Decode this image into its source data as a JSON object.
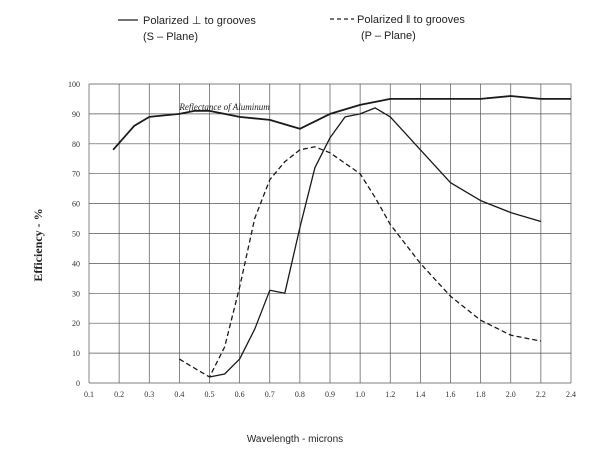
{
  "chart_data": {
    "type": "line",
    "title": "",
    "xlabel": "Wavelength - microns",
    "ylabel": "Efficiency - %",
    "ylim": [
      0,
      100
    ],
    "yticks": [
      0,
      10,
      20,
      30,
      40,
      50,
      60,
      70,
      80,
      90,
      100
    ],
    "xtick_labels": [
      "0.1",
      "0.2",
      "0.3",
      "0.4",
      "0.5",
      "0.6",
      "0.7",
      "0.8",
      "0.9",
      "1.0",
      "1.2",
      "1.4",
      "1.6",
      "1.8",
      "2.0",
      "2.2",
      "2.4"
    ],
    "grid": true,
    "legend_position": "top",
    "legend": [
      {
        "line1": "Polarized ⊥ to grooves",
        "line2": "(S – Plane)",
        "style": "solid"
      },
      {
        "line1": "Polarized ‖ to grooves",
        "line2": "(P – Plane)",
        "style": "dashed"
      }
    ],
    "annotations": [
      {
        "text": "Reflectance of Aluminum",
        "x": 0.55,
        "y": 92
      }
    ],
    "series": [
      {
        "style": "solid",
        "x": [
          0.18,
          0.25,
          0.3,
          0.4,
          0.45,
          0.5,
          0.55,
          0.6,
          0.7,
          0.8,
          0.9,
          1.0,
          1.1,
          1.2,
          1.4,
          1.6,
          1.8,
          2.0,
          2.2,
          2.4
        ],
        "y": [
          78,
          86,
          89,
          90,
          91,
          91,
          90,
          89,
          88,
          85,
          90,
          93,
          94,
          95,
          95,
          95,
          95,
          96,
          95,
          95
        ]
      },
      {
        "style": "solid",
        "x": [
          0.5,
          0.55,
          0.6,
          0.65,
          0.7,
          0.75,
          0.8,
          0.85,
          0.9,
          0.95,
          1.0,
          1.1,
          1.2,
          1.4,
          1.6,
          1.8,
          2.0,
          2.2
        ],
        "y": [
          2,
          3,
          8,
          18,
          31,
          30,
          52,
          72,
          82,
          89,
          90,
          92,
          89,
          78,
          67,
          61,
          57,
          54
        ]
      },
      {
        "style": "dashed",
        "x": [
          0.4,
          0.45,
          0.5,
          0.55,
          0.6,
          0.65,
          0.7,
          0.75,
          0.8,
          0.85,
          0.9,
          1.0,
          1.1,
          1.2,
          1.4,
          1.6,
          1.8,
          2.0,
          2.2
        ],
        "y": [
          8,
          5,
          2,
          12,
          32,
          55,
          68,
          74,
          78,
          79,
          77,
          70,
          62,
          53,
          40,
          29,
          21,
          16,
          14
        ]
      }
    ]
  }
}
